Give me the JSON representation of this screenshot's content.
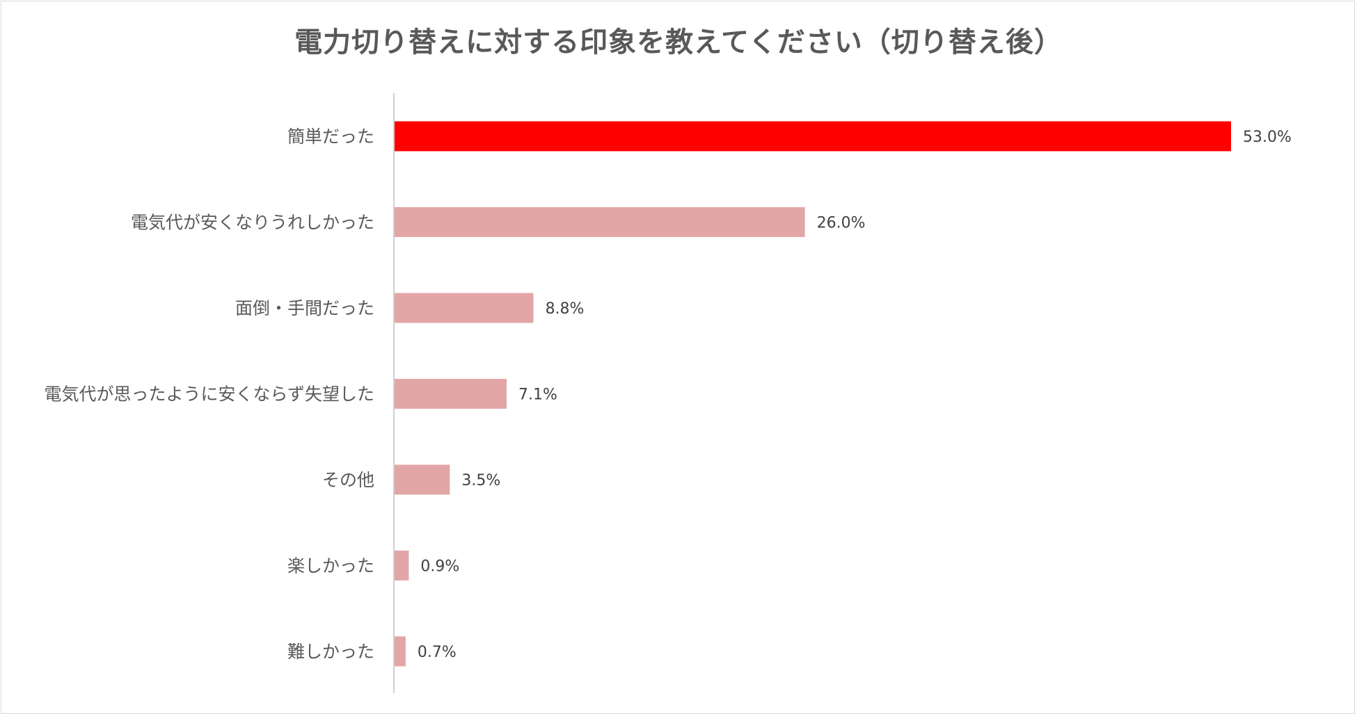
{
  "chart_data": {
    "type": "bar",
    "orientation": "horizontal",
    "title": "電力切り替えに対する印象を教えてください（切り替え後）",
    "categories": [
      "簡単だった",
      "電気代が安くなりうれしかった",
      "面倒・手間だった",
      "電気代が思ったように安くならず失望した",
      "その他",
      "楽しかった",
      "難しかった"
    ],
    "values": [
      53.0,
      26.0,
      8.8,
      7.1,
      3.5,
      0.9,
      0.7
    ],
    "value_labels": [
      "53.0%",
      "26.0%",
      "8.8%",
      "7.1%",
      "3.5%",
      "0.9%",
      "0.7%"
    ],
    "unit": "%",
    "xlim": [
      0,
      60
    ],
    "grid": false,
    "legend": "none",
    "colors": {
      "highlight": "#ff0000",
      "default": "#e3a6a7",
      "axis": "#bfbfbf",
      "category_text": "#595959",
      "value_text": "#404040"
    },
    "highlight_index": 0
  }
}
